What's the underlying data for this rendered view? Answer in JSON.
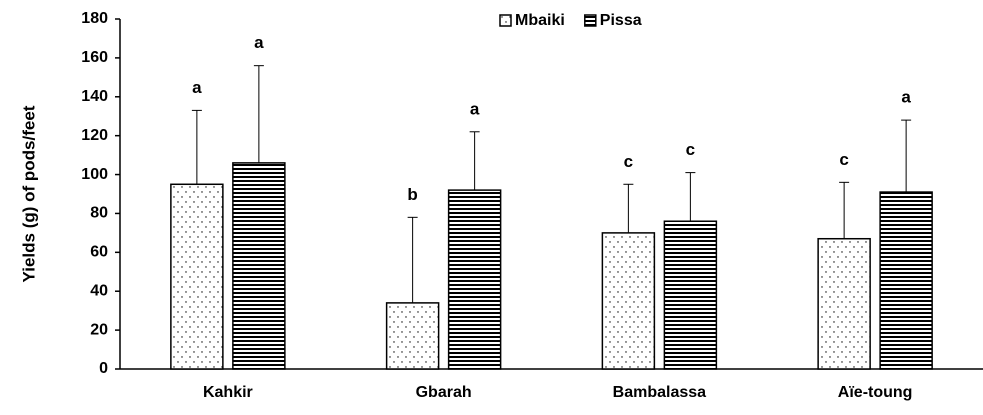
{
  "chart_data": {
    "type": "bar",
    "y_label": "Yields (g) of pods/feet",
    "categories": [
      "Kahkir",
      "Gbarah",
      "Bambalassa",
      "Aïe-toung"
    ],
    "series": [
      {
        "name": "Mbaiki",
        "color": "#000000",
        "pattern": "dots",
        "values": [
          95,
          34,
          70,
          67
        ],
        "errors": [
          38,
          44,
          25,
          29
        ],
        "letters": [
          "a",
          "b",
          "c",
          "c"
        ]
      },
      {
        "name": "Pissa",
        "color": "#000000",
        "pattern": "hlines",
        "values": [
          106,
          92,
          76,
          91
        ],
        "errors": [
          50,
          30,
          25,
          37
        ],
        "letters": [
          "a",
          "a",
          "c",
          "a"
        ]
      }
    ],
    "ylim": [
      0,
      180
    ],
    "yticks": [
      0,
      20,
      40,
      60,
      80,
      100,
      120,
      140,
      160,
      180
    ],
    "grid": false
  }
}
